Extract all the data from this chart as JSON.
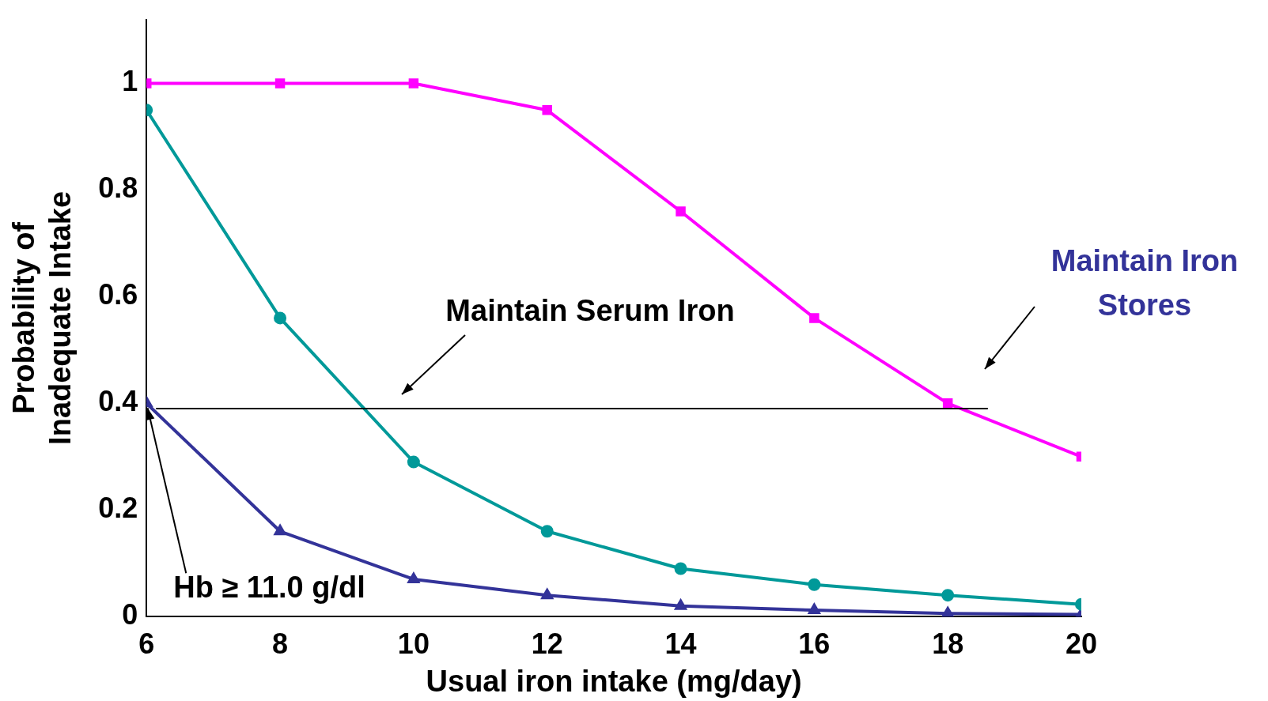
{
  "chart_data": {
    "type": "line",
    "xlabel": "Usual iron intake (mg/day)",
    "ylabel": "Probability of Inadequate Intake",
    "x": [
      6,
      8,
      10,
      12,
      14,
      16,
      18,
      20
    ],
    "series": [
      {
        "color": "#ff00ff",
        "marker": "square",
        "values": [
          1,
          1,
          1,
          0.95,
          0.76,
          0.56,
          0.4,
          0.3
        ]
      },
      {
        "color": "#009999",
        "marker": "circle",
        "values": [
          0.95,
          0.56,
          0.29,
          0.16,
          0.09,
          0.06,
          0.04,
          0.023
        ]
      },
      {
        "color": "#333399",
        "marker": "triangle",
        "values": [
          0.4,
          0.16,
          0.07,
          0.04,
          0.02,
          0.012,
          0.006,
          0.004
        ]
      }
    ],
    "xlim": [
      6,
      20
    ],
    "xticks": [
      6,
      8,
      10,
      12,
      14,
      16,
      18,
      20
    ],
    "ylim": [
      0,
      1.12
    ],
    "yticks": [
      0,
      0.2,
      0.4,
      0.6,
      0.8,
      1
    ],
    "ref_lines": [
      {
        "axis": "y",
        "value": 0.39,
        "color": "#000000"
      }
    ],
    "annotations": [
      "Maintain Serum Iron",
      "Maintain Iron Stores",
      {
        "text": "Hb ≥ 11.0 g/dl",
        "x": 6,
        "y": 0.4
      }
    ],
    "grid": false,
    "legend": false,
    "line_style": "solid"
  }
}
